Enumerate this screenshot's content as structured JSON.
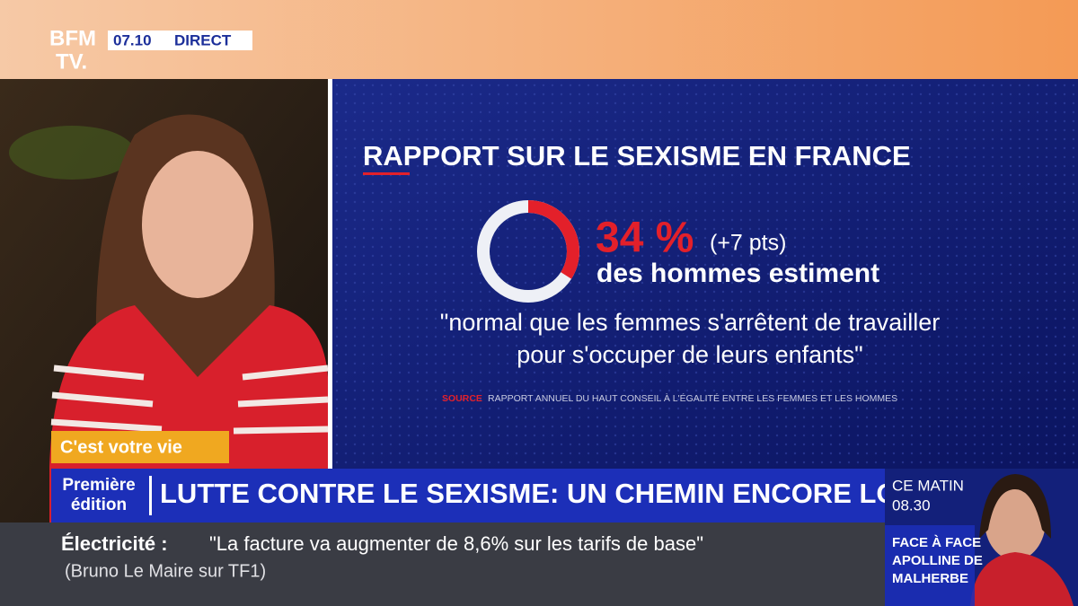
{
  "channel": {
    "logo_top": "BFM",
    "logo_bottom": "TV.",
    "time": "07.10",
    "live": "DIRECT"
  },
  "infographic": {
    "title": "RAPPORT SUR LE SEXISME EN FRANCE",
    "stat": {
      "value": 34,
      "value_label": "34 %",
      "change": "(+7 pts)"
    },
    "subject": "des hommes estiment",
    "quote_lines": [
      "\"normal que les femmes s'arrêtent de travailler",
      "pour s'occuper de leurs enfants\""
    ],
    "source_label": "SOURCE",
    "source": "RAPPORT ANNUEL DU HAUT CONSEIL À L'ÉGALITÉ ENTRE LES FEMMES ET LES HOMMES"
  },
  "segment_tag": "C'est votre vie",
  "show": {
    "name_lines": [
      "Première",
      "édition"
    ],
    "headline": "LUTTE CONTRE LE SEXISME: UN CHEMIN ENCORE LONG"
  },
  "next": {
    "label": "CE MATIN",
    "time": "08.30",
    "program_lines": [
      "FACE À FACE",
      "APOLLINE DE",
      "MALHERBE"
    ]
  },
  "ticker": {
    "topic": "Électricité :",
    "quote": "\"La facture va augmenter de 8,6% sur les tarifs de base\"",
    "attribution": "(Bruno Le Maire sur TF1)"
  }
}
